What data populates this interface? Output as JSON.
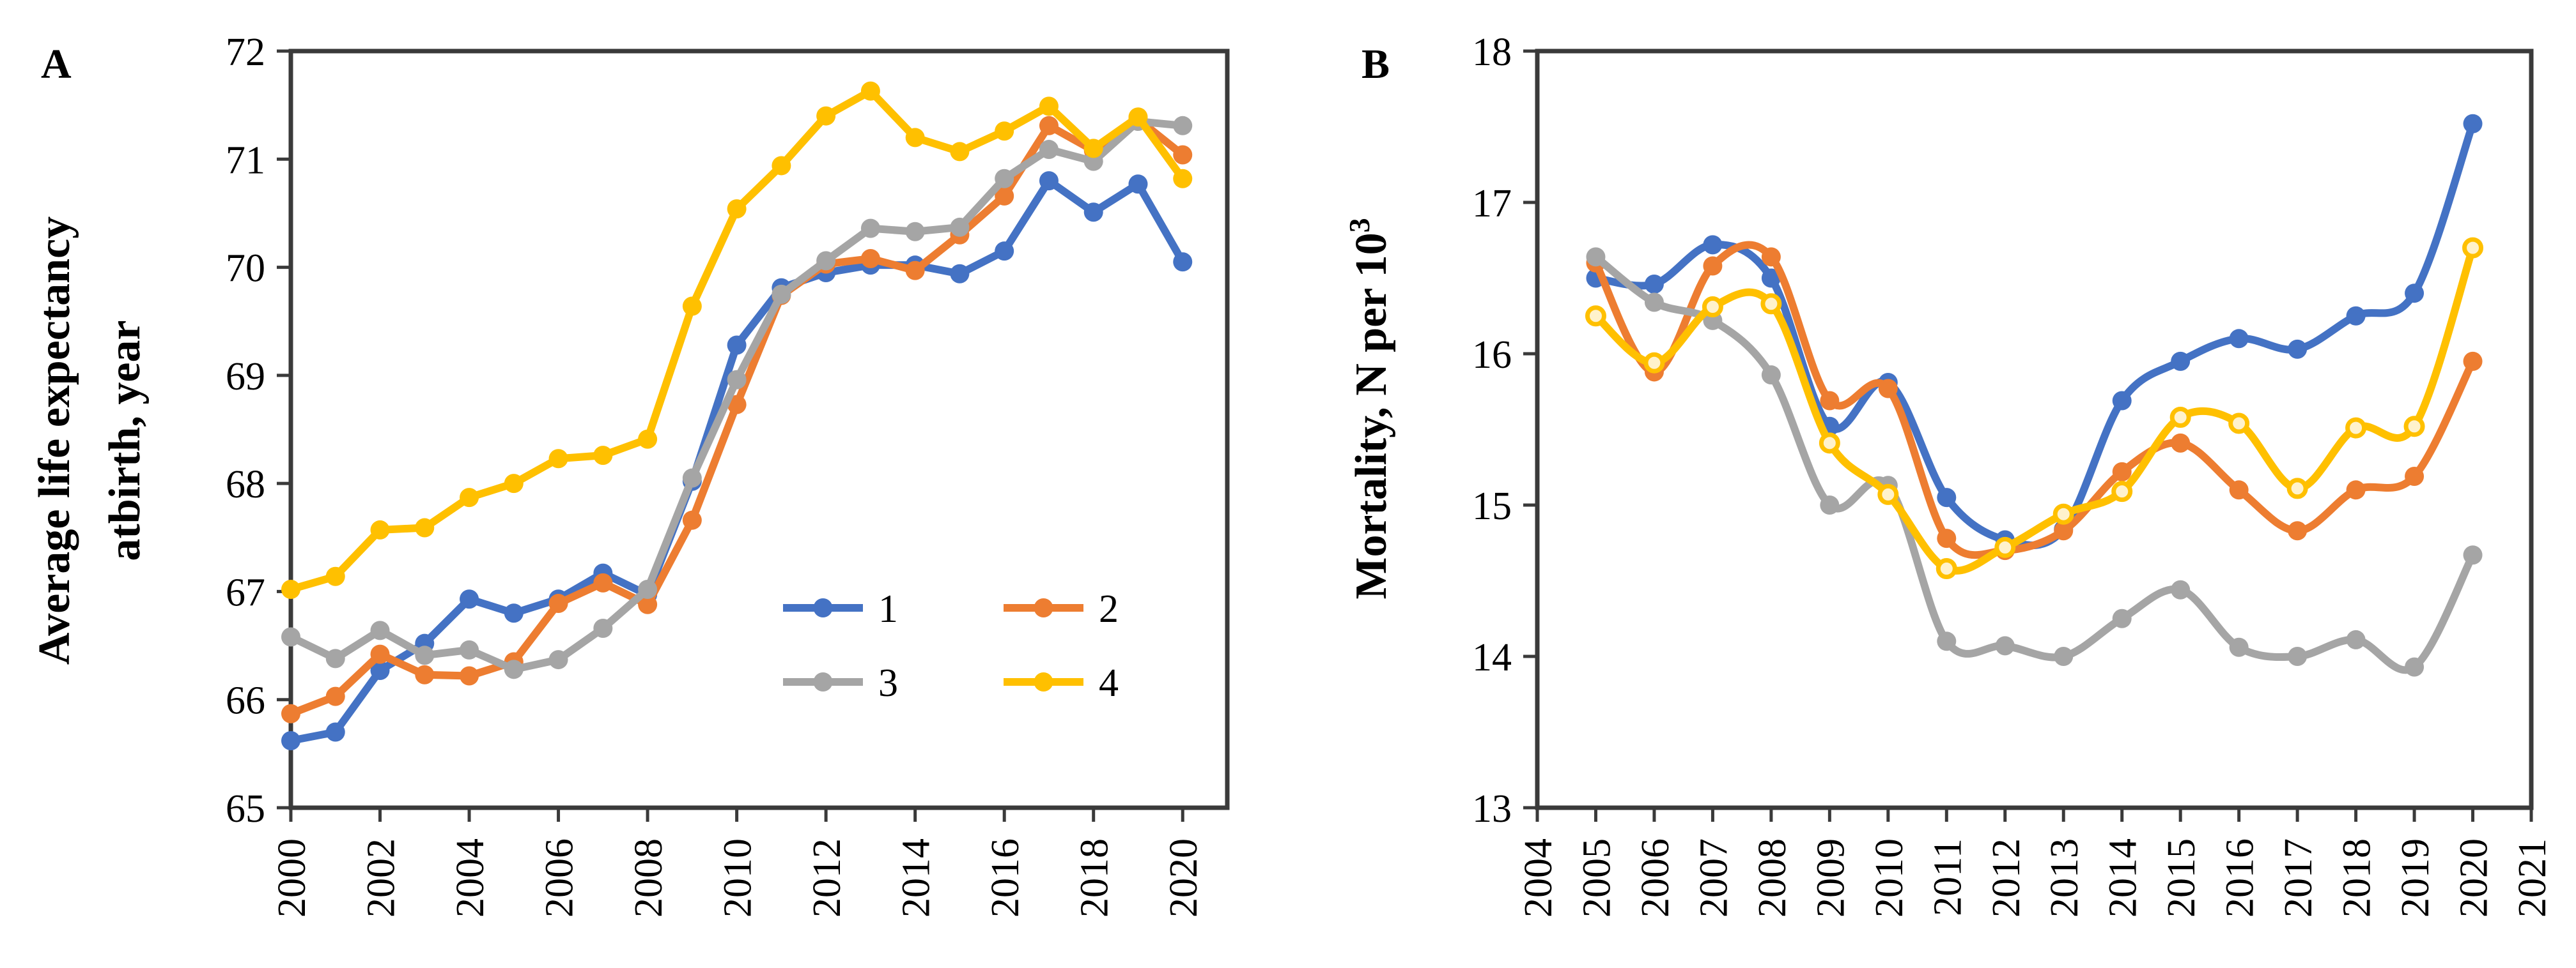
{
  "chart_data": [
    {
      "id": "A",
      "type": "line",
      "panel_label": "A",
      "title": "",
      "xlabel": "",
      "ylabel_line1": "Average life expectancy",
      "ylabel_line2": "atbirth, year",
      "xlim": [
        2000,
        2021
      ],
      "ylim": [
        65,
        72
      ],
      "xticks": [
        "2000",
        "2002",
        "2004",
        "2006",
        "2008",
        "2010",
        "2012",
        "2014",
        "2016",
        "2018",
        "2020"
      ],
      "yticks": [
        "65",
        "66",
        "67",
        "68",
        "69",
        "70",
        "71",
        "72"
      ],
      "grid": false,
      "legend_position": "lower-right",
      "x": [
        2000,
        2001,
        2002,
        2003,
        2004,
        2005,
        2006,
        2007,
        2008,
        2009,
        2010,
        2011,
        2012,
        2013,
        2014,
        2015,
        2016,
        2017,
        2018,
        2019,
        2020
      ],
      "series": [
        {
          "name": "1",
          "color": "#4472C4",
          "values": [
            65.62,
            65.7,
            66.27,
            66.52,
            66.93,
            66.8,
            66.93,
            67.17,
            66.97,
            68.02,
            69.28,
            69.81,
            69.95,
            70.02,
            70.02,
            69.94,
            70.15,
            70.8,
            70.51,
            70.77,
            70.05
          ]
        },
        {
          "name": "2",
          "color": "#ED7D31",
          "values": [
            65.87,
            66.03,
            66.42,
            66.23,
            66.22,
            66.35,
            66.89,
            67.08,
            66.88,
            67.66,
            68.73,
            69.74,
            70.03,
            70.08,
            69.97,
            70.3,
            70.66,
            71.31,
            71.08,
            71.37,
            71.04
          ]
        },
        {
          "name": "3",
          "color": "#A5A5A5",
          "values": [
            66.58,
            66.38,
            66.64,
            66.41,
            66.46,
            66.28,
            66.37,
            66.66,
            67.02,
            68.05,
            68.96,
            69.75,
            70.06,
            70.36,
            70.33,
            70.37,
            70.82,
            71.09,
            70.98,
            71.35,
            71.31
          ]
        },
        {
          "name": "4",
          "color": "#FFC000",
          "values": [
            67.02,
            67.14,
            67.57,
            67.59,
            67.87,
            68.0,
            68.23,
            68.26,
            68.41,
            69.64,
            70.54,
            70.94,
            71.4,
            71.63,
            71.2,
            71.07,
            71.26,
            71.49,
            71.1,
            71.39,
            70.82
          ]
        }
      ]
    },
    {
      "id": "B",
      "type": "line",
      "panel_label": "B",
      "title": "",
      "xlabel": "",
      "ylabel_prefix": "Mortality, N per 10",
      "ylabel_superscript": "3",
      "xlim": [
        2004,
        2021
      ],
      "ylim": [
        13,
        18
      ],
      "xticks": [
        "2004",
        "2005",
        "2006",
        "2007",
        "2008",
        "2009",
        "2010",
        "2011",
        "2012",
        "2013",
        "2014",
        "2015",
        "2016",
        "2017",
        "2018",
        "2019",
        "2020",
        "2021"
      ],
      "yticks": [
        "13",
        "14",
        "15",
        "16",
        "17",
        "18"
      ],
      "grid": false,
      "x": [
        2005,
        2006,
        2007,
        2008,
        2009,
        2010,
        2011,
        2012,
        2013,
        2014,
        2015,
        2016,
        2017,
        2018,
        2019,
        2020
      ],
      "series": [
        {
          "name": "1",
          "color": "#4472C4",
          "values": [
            16.5,
            16.46,
            16.72,
            16.5,
            15.52,
            15.81,
            15.05,
            14.77,
            14.84,
            15.69,
            15.95,
            16.1,
            16.03,
            16.25,
            16.4,
            17.52
          ]
        },
        {
          "name": "2",
          "color": "#ED7D31",
          "values": [
            16.6,
            15.88,
            16.58,
            16.64,
            15.69,
            15.77,
            14.78,
            14.7,
            14.83,
            15.22,
            15.41,
            15.1,
            14.83,
            15.1,
            15.19,
            15.95
          ]
        },
        {
          "name": "3",
          "color": "#A5A5A5",
          "values": [
            16.64,
            16.34,
            16.22,
            15.86,
            15.0,
            15.13,
            14.1,
            14.07,
            14.0,
            14.25,
            14.44,
            14.06,
            14.0,
            14.11,
            13.93,
            14.67
          ]
        },
        {
          "name": "4",
          "color": "#FFC000",
          "values": [
            16.25,
            15.94,
            16.31,
            16.33,
            15.41,
            15.07,
            14.58,
            14.72,
            14.94,
            15.09,
            15.58,
            15.54,
            15.11,
            15.51,
            15.52,
            16.7
          ]
        }
      ]
    }
  ]
}
